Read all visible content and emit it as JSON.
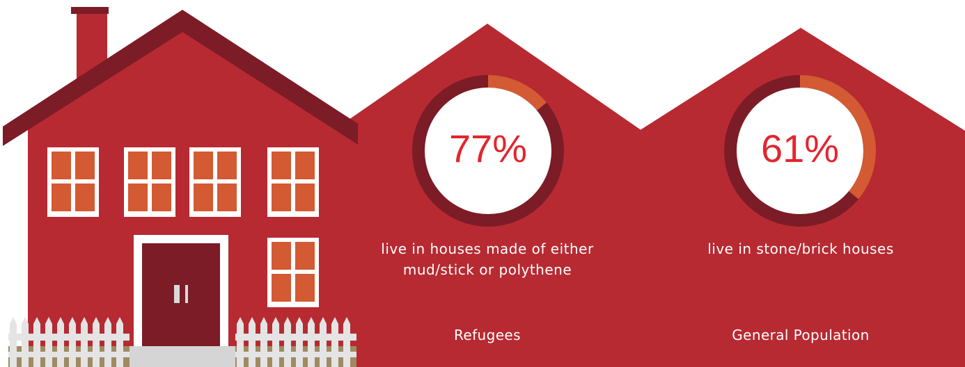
{
  "colors": {
    "house_red": "#b72a32",
    "roof_dark": "#7c1c26",
    "window_orange": "#d35a33",
    "window_frame": "#ffffff",
    "door": "#7c1c26",
    "fence": "#e4e4e4",
    "ground": "#a08a63",
    "step": "#d5d5d5",
    "ring_dark": "#7c1c26",
    "ring_accent": "#d35a33",
    "percent_text": "#e3262f"
  },
  "stats": [
    {
      "group": "Refugees",
      "percent": 77,
      "percent_label": "77%",
      "caption_line1": "live in houses made of either",
      "caption_line2": "mud/stick or polythene",
      "ring_accent_fraction": 0.14
    },
    {
      "group": "General Population",
      "percent": 61,
      "percent_label": "61%",
      "caption_line1": "live in stone/brick houses",
      "caption_line2": "",
      "ring_accent_fraction": 0.36
    }
  ]
}
